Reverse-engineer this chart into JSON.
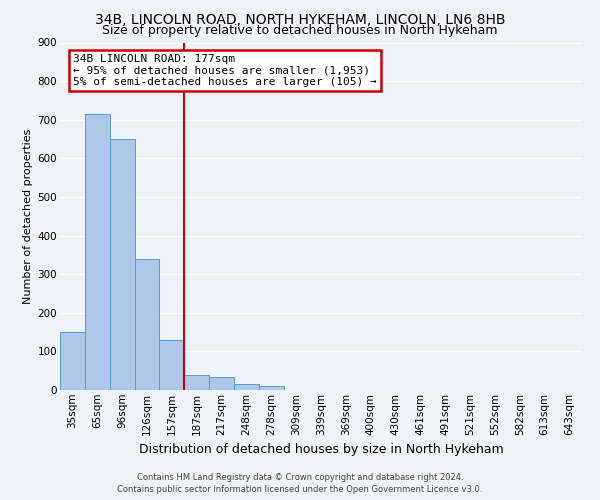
{
  "title1": "34B, LINCOLN ROAD, NORTH HYKEHAM, LINCOLN, LN6 8HB",
  "title2": "Size of property relative to detached houses in North Hykeham",
  "xlabel": "Distribution of detached houses by size in North Hykeham",
  "ylabel": "Number of detached properties",
  "footer1": "Contains HM Land Registry data © Crown copyright and database right 2024.",
  "footer2": "Contains public sector information licensed under the Open Government Licence v3.0.",
  "categories": [
    "35sqm",
    "65sqm",
    "96sqm",
    "126sqm",
    "157sqm",
    "187sqm",
    "217sqm",
    "248sqm",
    "278sqm",
    "309sqm",
    "339sqm",
    "369sqm",
    "400sqm",
    "430sqm",
    "461sqm",
    "491sqm",
    "521sqm",
    "552sqm",
    "582sqm",
    "613sqm",
    "643sqm"
  ],
  "values": [
    150,
    715,
    650,
    340,
    130,
    40,
    33,
    15,
    10,
    0,
    0,
    0,
    0,
    0,
    0,
    0,
    0,
    0,
    0,
    0,
    0
  ],
  "bar_color": "#aec6e8",
  "bar_edge_color": "#5b9bd5",
  "vline_x": 4.5,
  "vline_color": "#cc0000",
  "annotation_text": "34B LINCOLN ROAD: 177sqm\n← 95% of detached houses are smaller (1,953)\n5% of semi-detached houses are larger (105) →",
  "annotation_box_color": "#cc0000",
  "annotation_fill": "#ffffff",
  "ylim": [
    0,
    900
  ],
  "yticks": [
    0,
    100,
    200,
    300,
    400,
    500,
    600,
    700,
    800,
    900
  ],
  "bg_color": "#eef2f9",
  "grid_color": "#ffffff",
  "title1_fontsize": 10,
  "title2_fontsize": 9,
  "xlabel_fontsize": 9,
  "ylabel_fontsize": 8,
  "tick_fontsize": 7.5,
  "footer_fontsize": 6,
  "annotation_fontsize": 8
}
